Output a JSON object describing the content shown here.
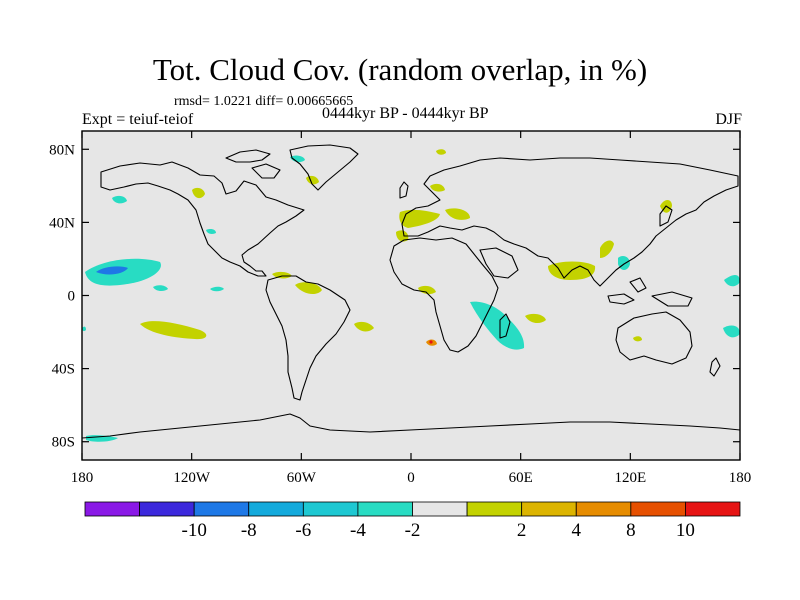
{
  "title": "Tot. Cloud Cov. (random overlap, in %)",
  "stats": "rmsd= 1.0221 diff= 0.00665665",
  "experiment": "Expt = teiuf-teiof",
  "period": "0444kyr BP - 0444kyr BP",
  "season": "DJF",
  "map": {
    "background_color": "#e6e6e6",
    "lat_ticks": [
      {
        "label": "80N",
        "value": 80
      },
      {
        "label": "40N",
        "value": 40
      },
      {
        "label": "0",
        "value": 0
      },
      {
        "label": "40S",
        "value": -40
      },
      {
        "label": "80S",
        "value": -80
      }
    ],
    "lon_ticks": [
      {
        "label": "180",
        "value": -180
      },
      {
        "label": "120W",
        "value": -120
      },
      {
        "label": "60W",
        "value": -60
      },
      {
        "label": "0",
        "value": 0
      },
      {
        "label": "60E",
        "value": 60
      },
      {
        "label": "120E",
        "value": 120
      },
      {
        "label": "180",
        "value": 180
      }
    ],
    "lat_range": [
      -90,
      90
    ],
    "lon_range": [
      -180,
      180
    ]
  },
  "colorbar": {
    "colors": [
      "#8a19e6",
      "#3c28dc",
      "#1e78e6",
      "#14aadc",
      "#1ec8d2",
      "#28dcc3",
      "#e6e6e6",
      "#c3d200",
      "#dcb400",
      "#e68c00",
      "#e65000",
      "#e61414"
    ],
    "labels": [
      "-10",
      "-8",
      "-6",
      "-4",
      "-2",
      "2",
      "4",
      "8",
      "10"
    ]
  }
}
